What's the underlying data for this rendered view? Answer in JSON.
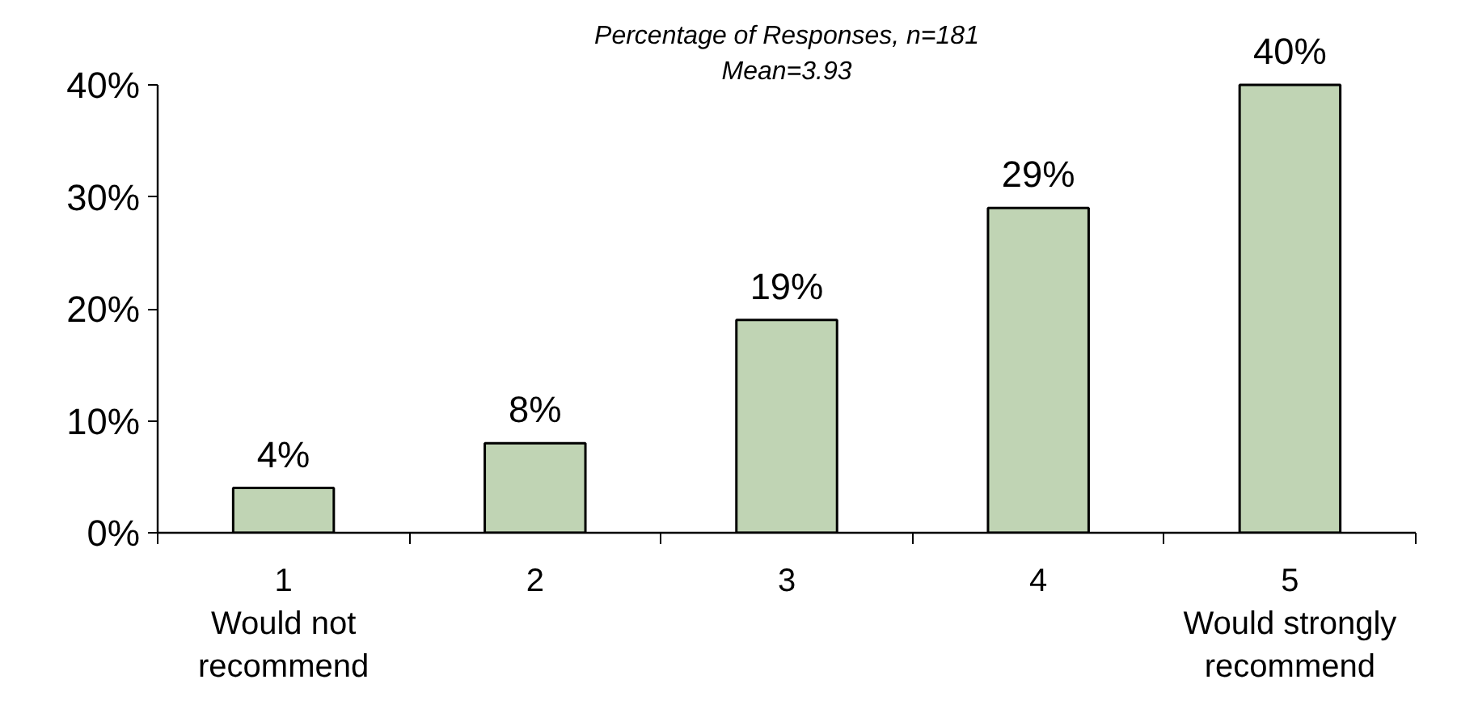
{
  "chart_data": {
    "type": "bar",
    "title": "Percentage of Responses, n=181",
    "subtitle": "Mean=3.93",
    "categories": [
      "1\nWould not\nrecommend",
      "2",
      "3",
      "4",
      "5\nWould strongly\nrecommend"
    ],
    "values": [
      4,
      8,
      19,
      29,
      40
    ],
    "value_labels": [
      "4%",
      "8%",
      "19%",
      "29%",
      "40%"
    ],
    "color": "#c0d4b4",
    "ylim": [
      0,
      40
    ],
    "yticks": [
      {
        "value": 0,
        "label": "0%"
      },
      {
        "value": 10,
        "label": "10%"
      },
      {
        "value": 20,
        "label": "20%"
      },
      {
        "value": 30,
        "label": "30%"
      },
      {
        "value": 40,
        "label": "40%"
      }
    ],
    "grid": false
  }
}
